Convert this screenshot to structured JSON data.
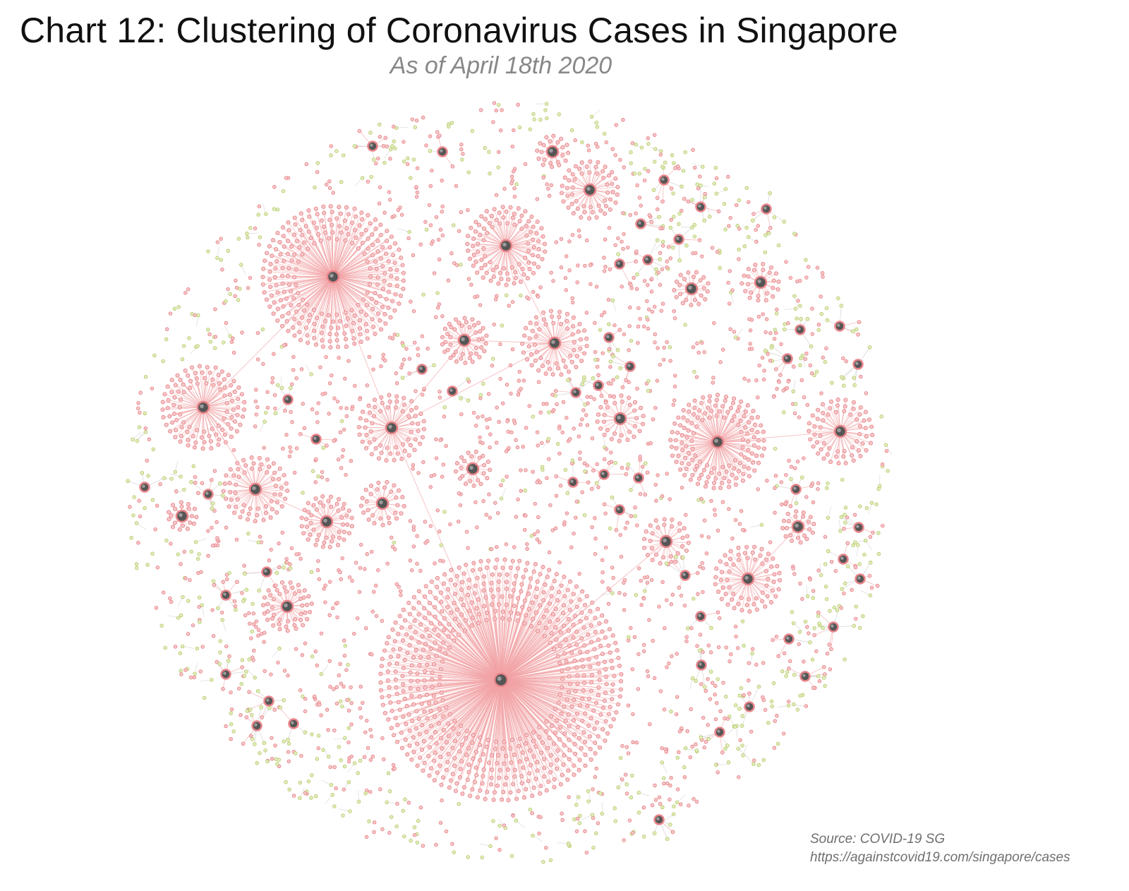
{
  "title": "Chart 12: Clustering of Coronavirus Cases in Singapore",
  "subtitle": "As of April 18th 2020",
  "source": {
    "line1": "Source: COVID-19 SG",
    "line2": "https://againstcovid19.com/singapore/cases"
  },
  "colors": {
    "case_node": "#e8858a",
    "case_node_fill": "#f6c9cb",
    "edge": "#f2a3a6",
    "unlinked_node": "#b8cc6e",
    "unlinked_edge": "#c9c9c9",
    "cluster_hub": "#555555"
  }
}
